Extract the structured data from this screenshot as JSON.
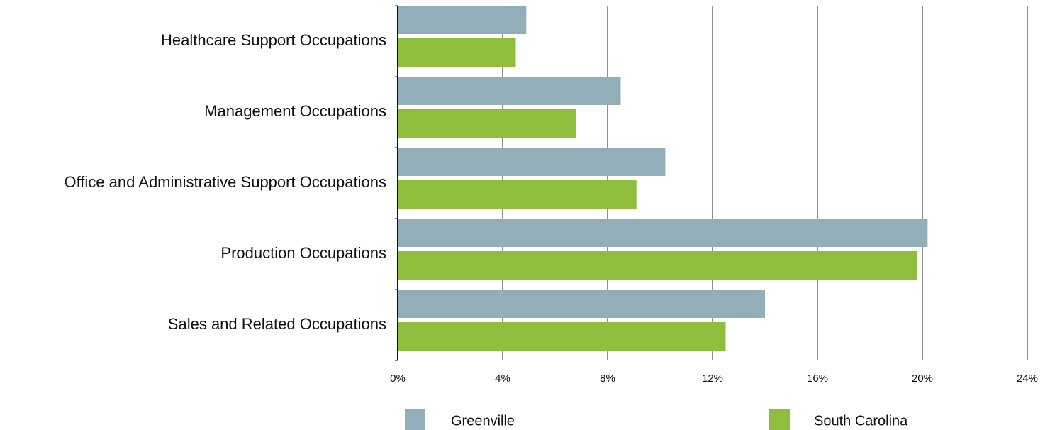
{
  "chart_data": {
    "type": "bar",
    "orientation": "horizontal",
    "categories": [
      "Healthcare Support Occupations",
      "Management Occupations",
      "Office and Administrative Support Occupations",
      "Production Occupations",
      "Sales and Related Occupations"
    ],
    "series": [
      {
        "name": "Greenville",
        "color": "#92afb9",
        "values": [
          4.9,
          8.5,
          10.2,
          20.2,
          14.0
        ]
      },
      {
        "name": "South Carolina",
        "color": "#8fbe3c",
        "values": [
          4.5,
          6.8,
          9.1,
          19.8,
          12.5
        ]
      }
    ],
    "xlim": [
      0,
      24
    ],
    "x_ticks": [
      0,
      4,
      8,
      12,
      16,
      20,
      24
    ],
    "x_tick_labels": [
      "0%",
      "4%",
      "8%",
      "12%",
      "16%",
      "20%",
      "24%"
    ],
    "grid": "vertical",
    "legend_position": "bottom"
  }
}
